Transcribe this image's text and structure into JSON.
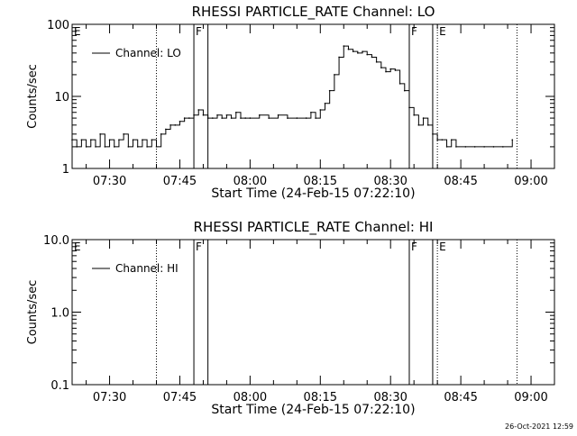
{
  "timestamp": "26-Oct-2021 12:59",
  "chart_data": [
    {
      "type": "line",
      "title": "RHESSI PARTICLE_RATE Channel: LO",
      "xlabel": "Start Time (24-Feb-15 07:22:10)",
      "ylabel": "Counts/sec",
      "yscale": "log",
      "ylim": [
        1,
        100
      ],
      "xlim": [
        "07:22",
        "09:05"
      ],
      "y_ticks": [
        "1",
        "10",
        "100"
      ],
      "x_ticks": [
        "07:30",
        "07:45",
        "08:00",
        "08:15",
        "08:30",
        "08:45",
        "09:00"
      ],
      "legend": {
        "position": "top-left",
        "entries": [
          "Channel: LO"
        ]
      },
      "series": [
        {
          "name": "Channel: LO",
          "x": [
            "07:22",
            "07:23",
            "07:24",
            "07:25",
            "07:26",
            "07:27",
            "07:28",
            "07:29",
            "07:30",
            "07:31",
            "07:32",
            "07:33",
            "07:34",
            "07:35",
            "07:36",
            "07:37",
            "07:38",
            "07:39",
            "07:40",
            "07:41",
            "07:42",
            "07:43",
            "07:44",
            "07:45",
            "07:46",
            "07:47",
            "07:48",
            "07:49",
            "07:50",
            "07:51",
            "07:52",
            "07:53",
            "07:54",
            "07:55",
            "07:56",
            "07:57",
            "07:58",
            "07:59",
            "08:00",
            "08:02",
            "08:04",
            "08:06",
            "08:08",
            "08:10",
            "08:12",
            "08:13",
            "08:14",
            "08:15",
            "08:16",
            "08:17",
            "08:18",
            "08:19",
            "08:20",
            "08:21",
            "08:22",
            "08:23",
            "08:24",
            "08:25",
            "08:26",
            "08:27",
            "08:28",
            "08:29",
            "08:30",
            "08:31",
            "08:32",
            "08:33",
            "08:34",
            "08:35",
            "08:36",
            "08:37",
            "08:38",
            "08:39",
            "08:40",
            "08:41",
            "08:42",
            "08:43",
            "08:44",
            "08:46",
            "08:48",
            "08:50",
            "08:52",
            "08:54",
            "08:56"
          ],
          "y": [
            2.5,
            2,
            2.5,
            2,
            2.5,
            2,
            3,
            2,
            2.5,
            2,
            2.5,
            3,
            2,
            2.5,
            2,
            2.5,
            2,
            2.5,
            2,
            3,
            3.5,
            4,
            4,
            4.5,
            5,
            5,
            5.5,
            6.5,
            5.5,
            5,
            5,
            5.5,
            5,
            5.5,
            5,
            6,
            5,
            5,
            5,
            5.5,
            5,
            5.5,
            5,
            5,
            5,
            6,
            5,
            6.5,
            8,
            12,
            20,
            35,
            50,
            45,
            42,
            40,
            42,
            38,
            35,
            30,
            25,
            22,
            24,
            23,
            15,
            12,
            7,
            5.5,
            4,
            5,
            4,
            3,
            2.5,
            2.5,
            2,
            2.5,
            2,
            2,
            2,
            2,
            2,
            2,
            2.5
          ]
        }
      ],
      "annotations": [
        {
          "label": "E",
          "x": "07:22",
          "style": "dotted"
        },
        {
          "label": "",
          "x": "07:40",
          "style": "dotted"
        },
        {
          "label": "F",
          "x": "07:48",
          "style": "solid"
        },
        {
          "label": "",
          "x": "07:51",
          "style": "solid"
        },
        {
          "label": "F",
          "x": "08:34",
          "style": "solid"
        },
        {
          "label": "",
          "x": "08:39",
          "style": "solid"
        },
        {
          "label": "E",
          "x": "08:40",
          "style": "dotted"
        },
        {
          "label": "",
          "x": "08:57",
          "style": "dotted"
        }
      ]
    },
    {
      "type": "line",
      "title": "RHESSI PARTICLE_RATE Channel: HI",
      "xlabel": "Start Time (24-Feb-15 07:22:10)",
      "ylabel": "Counts/sec",
      "yscale": "log",
      "ylim": [
        0.1,
        10
      ],
      "xlim": [
        "07:22",
        "09:05"
      ],
      "y_ticks": [
        "0.1",
        "1.0",
        "10.0"
      ],
      "x_ticks": [
        "07:30",
        "07:45",
        "08:00",
        "08:15",
        "08:30",
        "08:45",
        "09:00"
      ],
      "legend": {
        "position": "top-left",
        "entries": [
          "Channel: HI"
        ]
      },
      "series": [
        {
          "name": "Channel: HI",
          "x": [],
          "y": []
        }
      ],
      "annotations": [
        {
          "label": "E",
          "x": "07:22",
          "style": "dotted"
        },
        {
          "label": "",
          "x": "07:40",
          "style": "dotted"
        },
        {
          "label": "F",
          "x": "07:48",
          "style": "solid"
        },
        {
          "label": "",
          "x": "07:51",
          "style": "solid"
        },
        {
          "label": "F",
          "x": "08:34",
          "style": "solid"
        },
        {
          "label": "",
          "x": "08:39",
          "style": "solid"
        },
        {
          "label": "E",
          "x": "08:40",
          "style": "dotted"
        },
        {
          "label": "",
          "x": "08:57",
          "style": "dotted"
        }
      ]
    }
  ]
}
